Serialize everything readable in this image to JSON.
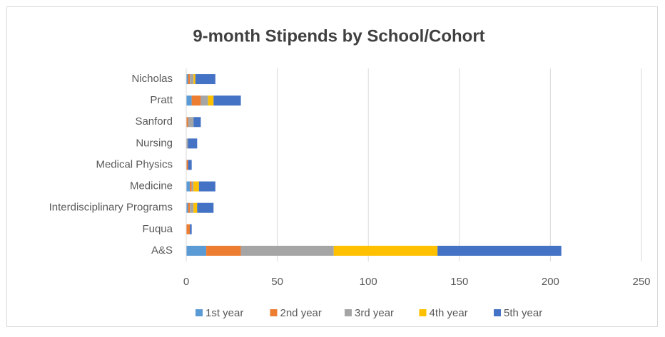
{
  "chart_data": {
    "type": "stacked-barh",
    "title": "9-month Stipends by School/Cohort",
    "categories": [
      "Nicholas",
      "Pratt",
      "Sanford",
      "Nursing",
      "Medical Physics",
      "Medicine",
      "Interdisciplinary Programs",
      "Fuqua",
      "A&S"
    ],
    "series": [
      {
        "name": "1st year",
        "color": "#5b9bd5",
        "values": [
          1,
          3,
          0,
          0,
          0,
          2,
          1,
          0,
          11
        ]
      },
      {
        "name": "2nd year",
        "color": "#ed7d31",
        "values": [
          1,
          5,
          1,
          0,
          1,
          1,
          1,
          2,
          19
        ]
      },
      {
        "name": "3rd year",
        "color": "#a5a5a5",
        "values": [
          2,
          4,
          3,
          1,
          0,
          1,
          2,
          0,
          51
        ]
      },
      {
        "name": "4th year",
        "color": "#ffc000",
        "values": [
          1,
          3,
          0,
          0,
          0,
          3,
          2,
          0,
          57
        ]
      },
      {
        "name": "5th year",
        "color": "#4472c4",
        "values": [
          11,
          15,
          4,
          5,
          2,
          9,
          9,
          1,
          68
        ]
      }
    ],
    "xlim": [
      0,
      250
    ],
    "xticks": [
      0,
      50,
      100,
      150,
      200,
      250
    ],
    "grid": true,
    "legend": "bottom"
  }
}
